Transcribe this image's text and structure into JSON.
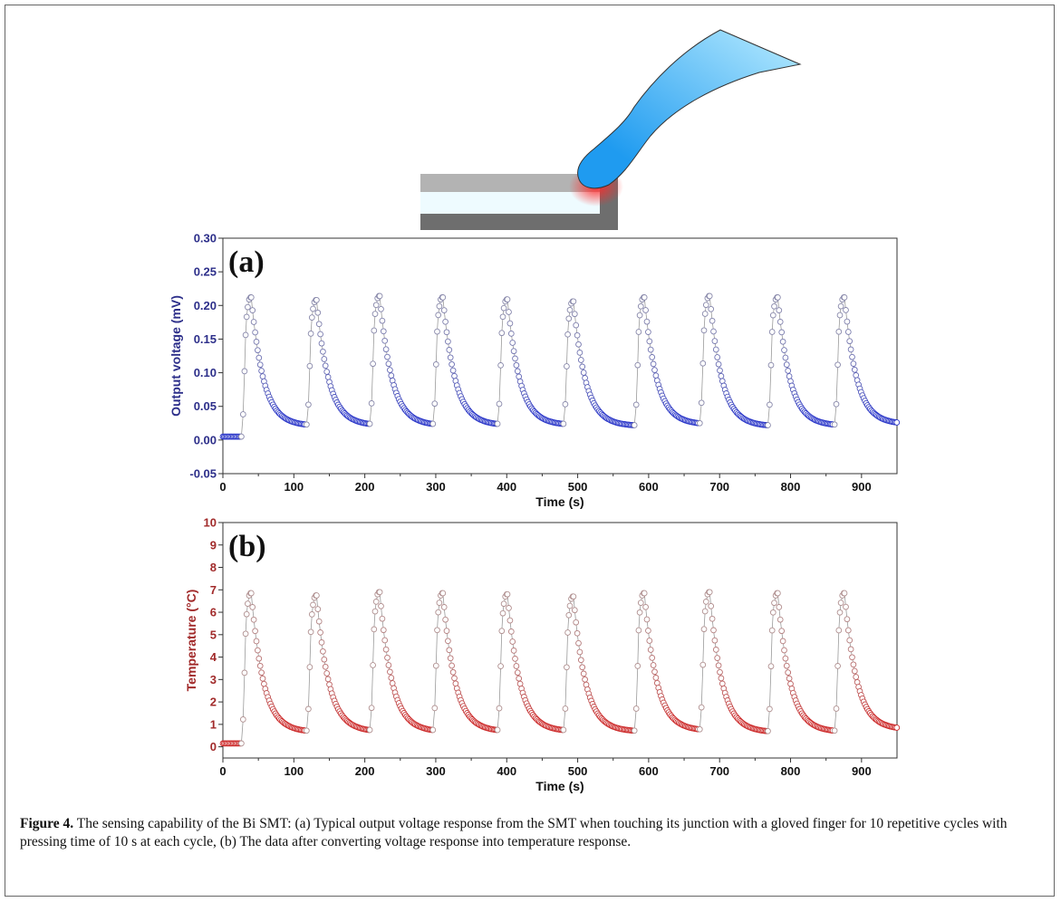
{
  "caption": {
    "label": "Figure 4.",
    "text": "The sensing capability of the Bi SMT: (a) Typical output voltage response from the SMT when touching its junction with a gloved finger for 10 repetitive cycles with pressing time of 10 s at each cycle, (b) The data after converting voltage response into temperature response."
  },
  "illustration": {
    "finger_gradient": [
      "#1f9bf0",
      "#b9ecff"
    ],
    "touch_glow": "#ff2a2a"
  },
  "chart_data": [
    {
      "type": "scatter",
      "panel_label": "(a)",
      "title": "",
      "xlabel": "Time (s)",
      "ylabel": "Output voltage (mV)",
      "xlim": [
        0,
        950
      ],
      "ylim": [
        -0.05,
        0.3
      ],
      "xticks": [
        0,
        100,
        200,
        300,
        400,
        500,
        600,
        700,
        800,
        900
      ],
      "yticks": [
        -0.05,
        0.0,
        0.05,
        0.1,
        0.15,
        0.2,
        0.25,
        0.3
      ],
      "ytick_labels": [
        "-0.05",
        "0.00",
        "0.05",
        "0.10",
        "0.15",
        "0.20",
        "0.25",
        "0.30"
      ],
      "grid": false,
      "color_peak": "#8888aa",
      "color_tail": "#2a36c8",
      "markers": "open-circle",
      "baseline": 0.005,
      "cycles": [
        {
          "start": 26,
          "peak": 0.212,
          "end": 0.023
        },
        {
          "start": 118,
          "peak": 0.208,
          "end": 0.024
        },
        {
          "start": 207,
          "peak": 0.214,
          "end": 0.024
        },
        {
          "start": 296,
          "peak": 0.212,
          "end": 0.024
        },
        {
          "start": 387,
          "peak": 0.209,
          "end": 0.024
        },
        {
          "start": 480,
          "peak": 0.206,
          "end": 0.022
        },
        {
          "start": 580,
          "peak": 0.212,
          "end": 0.025
        },
        {
          "start": 672,
          "peak": 0.214,
          "end": 0.022
        },
        {
          "start": 768,
          "peak": 0.212,
          "end": 0.023
        },
        {
          "start": 862,
          "peak": 0.212,
          "end": 0.026
        }
      ]
    },
    {
      "type": "scatter",
      "panel_label": "(b)",
      "title": "",
      "xlabel": "Time (s)",
      "ylabel": "Temperature (°C)",
      "xlim": [
        0,
        950
      ],
      "ylim": [
        -0.5,
        10
      ],
      "xticks": [
        0,
        100,
        200,
        300,
        400,
        500,
        600,
        700,
        800,
        900
      ],
      "yticks": [
        0,
        1,
        2,
        3,
        4,
        5,
        6,
        7,
        8,
        9,
        10
      ],
      "ytick_labels": [
        "0",
        "1",
        "2",
        "3",
        "4",
        "5",
        "6",
        "7",
        "8",
        "9",
        "10"
      ],
      "grid": false,
      "color_peak": "#b09090",
      "color_tail": "#cc2a2a",
      "markers": "open-circle",
      "baseline": 0.15,
      "cycles": [
        {
          "start": 26,
          "peak": 6.85,
          "end": 0.72
        },
        {
          "start": 118,
          "peak": 6.75,
          "end": 0.75
        },
        {
          "start": 207,
          "peak": 6.9,
          "end": 0.75
        },
        {
          "start": 296,
          "peak": 6.85,
          "end": 0.75
        },
        {
          "start": 387,
          "peak": 6.8,
          "end": 0.75
        },
        {
          "start": 480,
          "peak": 6.7,
          "end": 0.72
        },
        {
          "start": 580,
          "peak": 6.85,
          "end": 0.78
        },
        {
          "start": 672,
          "peak": 6.9,
          "end": 0.7
        },
        {
          "start": 768,
          "peak": 6.85,
          "end": 0.72
        },
        {
          "start": 862,
          "peak": 6.85,
          "end": 0.85
        }
      ]
    }
  ]
}
